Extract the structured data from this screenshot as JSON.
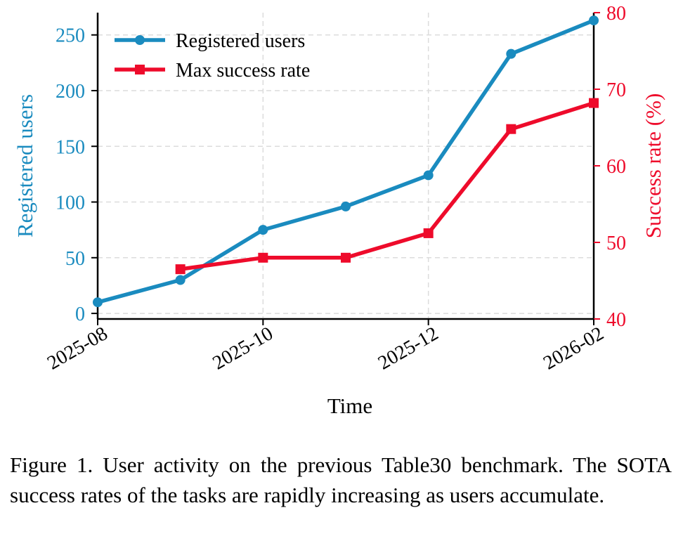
{
  "chart_data": {
    "type": "line",
    "xlabel": "Time",
    "x_ticks": [
      "2025-08",
      "2025-10",
      "2025-12",
      "2026-02"
    ],
    "y_left": {
      "label": "Registered users",
      "ticks": [
        0,
        50,
        100,
        150,
        200,
        250
      ],
      "ylim": [
        -5,
        270
      ],
      "color": "#1a8bbf"
    },
    "y_right": {
      "label": "Success rate (%)",
      "ticks": [
        40,
        50,
        60,
        70,
        80
      ],
      "ylim": [
        40,
        80
      ],
      "color": "#ee0b2b"
    },
    "grid": true,
    "legend_position": "top-left",
    "series": [
      {
        "name": "Registered users",
        "axis": "left",
        "marker": "circle",
        "color": "#1a8bbf",
        "x": [
          0,
          1,
          2,
          3,
          4,
          5,
          6
        ],
        "values": [
          10,
          30,
          75,
          96,
          124,
          233,
          263
        ]
      },
      {
        "name": "Max success rate",
        "axis": "right",
        "marker": "square",
        "color": "#ee0b2b",
        "x": [
          1,
          2,
          3,
          4,
          5,
          6
        ],
        "values": [
          46.5,
          48,
          48,
          51.2,
          64.8,
          68.2
        ]
      }
    ]
  },
  "caption": "Figure 1. User activity on the previous Table30 benchmark. The SOTA success rates of the tasks are rapidly increasing as users accumulate."
}
